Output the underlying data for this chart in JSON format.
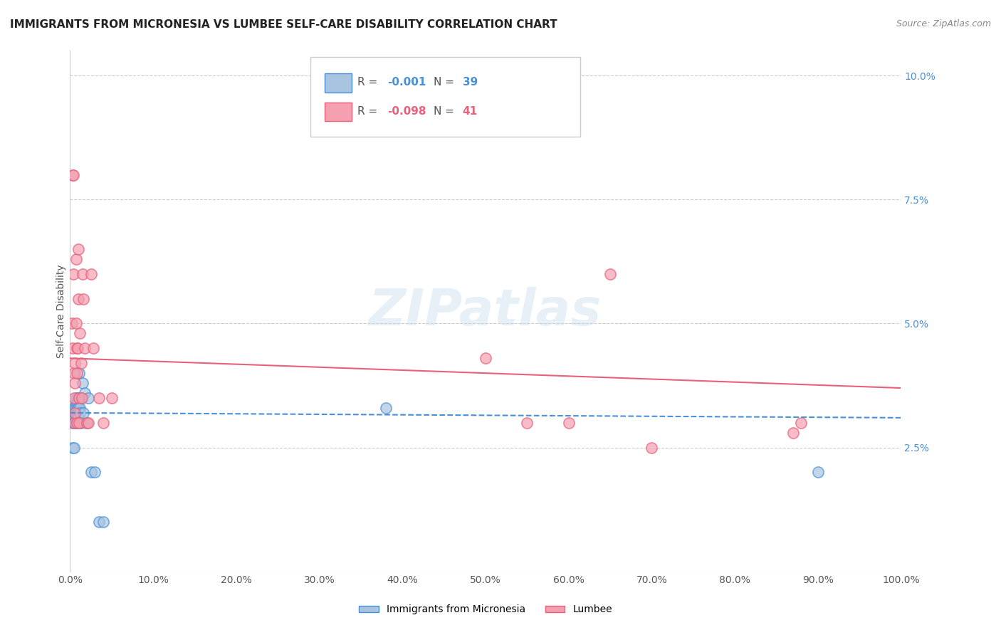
{
  "title": "IMMIGRANTS FROM MICRONESIA VS LUMBEE SELF-CARE DISABILITY CORRELATION CHART",
  "source": "Source: ZipAtlas.com",
  "ylabel": "Self-Care Disability",
  "right_yticks": [
    0.0,
    0.025,
    0.05,
    0.075,
    0.1
  ],
  "right_yticklabels": [
    "",
    "2.5%",
    "5.0%",
    "7.5%",
    "10.0%"
  ],
  "xlim": [
    0.0,
    1.0
  ],
  "ylim": [
    0.0,
    0.105
  ],
  "blue_x": [
    0.003,
    0.003,
    0.004,
    0.005,
    0.005,
    0.005,
    0.005,
    0.006,
    0.006,
    0.006,
    0.007,
    0.007,
    0.007,
    0.007,
    0.008,
    0.008,
    0.008,
    0.009,
    0.009,
    0.01,
    0.01,
    0.01,
    0.011,
    0.011,
    0.012,
    0.012,
    0.013,
    0.013,
    0.015,
    0.016,
    0.018,
    0.02,
    0.022,
    0.025,
    0.03,
    0.035,
    0.04,
    0.38,
    0.9
  ],
  "blue_y": [
    0.03,
    0.025,
    0.033,
    0.032,
    0.031,
    0.03,
    0.025,
    0.033,
    0.031,
    0.03,
    0.035,
    0.033,
    0.031,
    0.03,
    0.034,
    0.032,
    0.03,
    0.033,
    0.031,
    0.035,
    0.033,
    0.031,
    0.04,
    0.03,
    0.033,
    0.032,
    0.035,
    0.03,
    0.038,
    0.032,
    0.036,
    0.03,
    0.035,
    0.02,
    0.02,
    0.01,
    0.01,
    0.033,
    0.02
  ],
  "pink_x": [
    0.002,
    0.003,
    0.003,
    0.004,
    0.004,
    0.005,
    0.005,
    0.005,
    0.006,
    0.006,
    0.006,
    0.007,
    0.007,
    0.008,
    0.008,
    0.008,
    0.009,
    0.01,
    0.01,
    0.011,
    0.011,
    0.012,
    0.013,
    0.014,
    0.015,
    0.016,
    0.018,
    0.02,
    0.022,
    0.025,
    0.028,
    0.035,
    0.04,
    0.05,
    0.5,
    0.55,
    0.6,
    0.65,
    0.7,
    0.87,
    0.88
  ],
  "pink_y": [
    0.05,
    0.08,
    0.045,
    0.06,
    0.08,
    0.04,
    0.035,
    0.03,
    0.042,
    0.038,
    0.032,
    0.063,
    0.05,
    0.045,
    0.04,
    0.03,
    0.045,
    0.065,
    0.055,
    0.035,
    0.03,
    0.048,
    0.042,
    0.035,
    0.06,
    0.055,
    0.045,
    0.03,
    0.03,
    0.06,
    0.045,
    0.035,
    0.03,
    0.035,
    0.043,
    0.03,
    0.03,
    0.06,
    0.025,
    0.028,
    0.03
  ],
  "blue_trend_x": [
    0.0,
    1.0
  ],
  "blue_trend_y": [
    0.032,
    0.031
  ],
  "pink_trend_x": [
    0.0,
    1.0
  ],
  "pink_trend_y": [
    0.043,
    0.037
  ],
  "blue_color": "#a8c4e0",
  "pink_color": "#f4a0b0",
  "blue_line_color": "#4a90d9",
  "pink_line_color": "#e8607a",
  "grid_color": "#cccccc",
  "background_color": "#ffffff",
  "watermark": "ZIPatlas",
  "title_fontsize": 11,
  "axis_label_fontsize": 10,
  "tick_fontsize": 10
}
